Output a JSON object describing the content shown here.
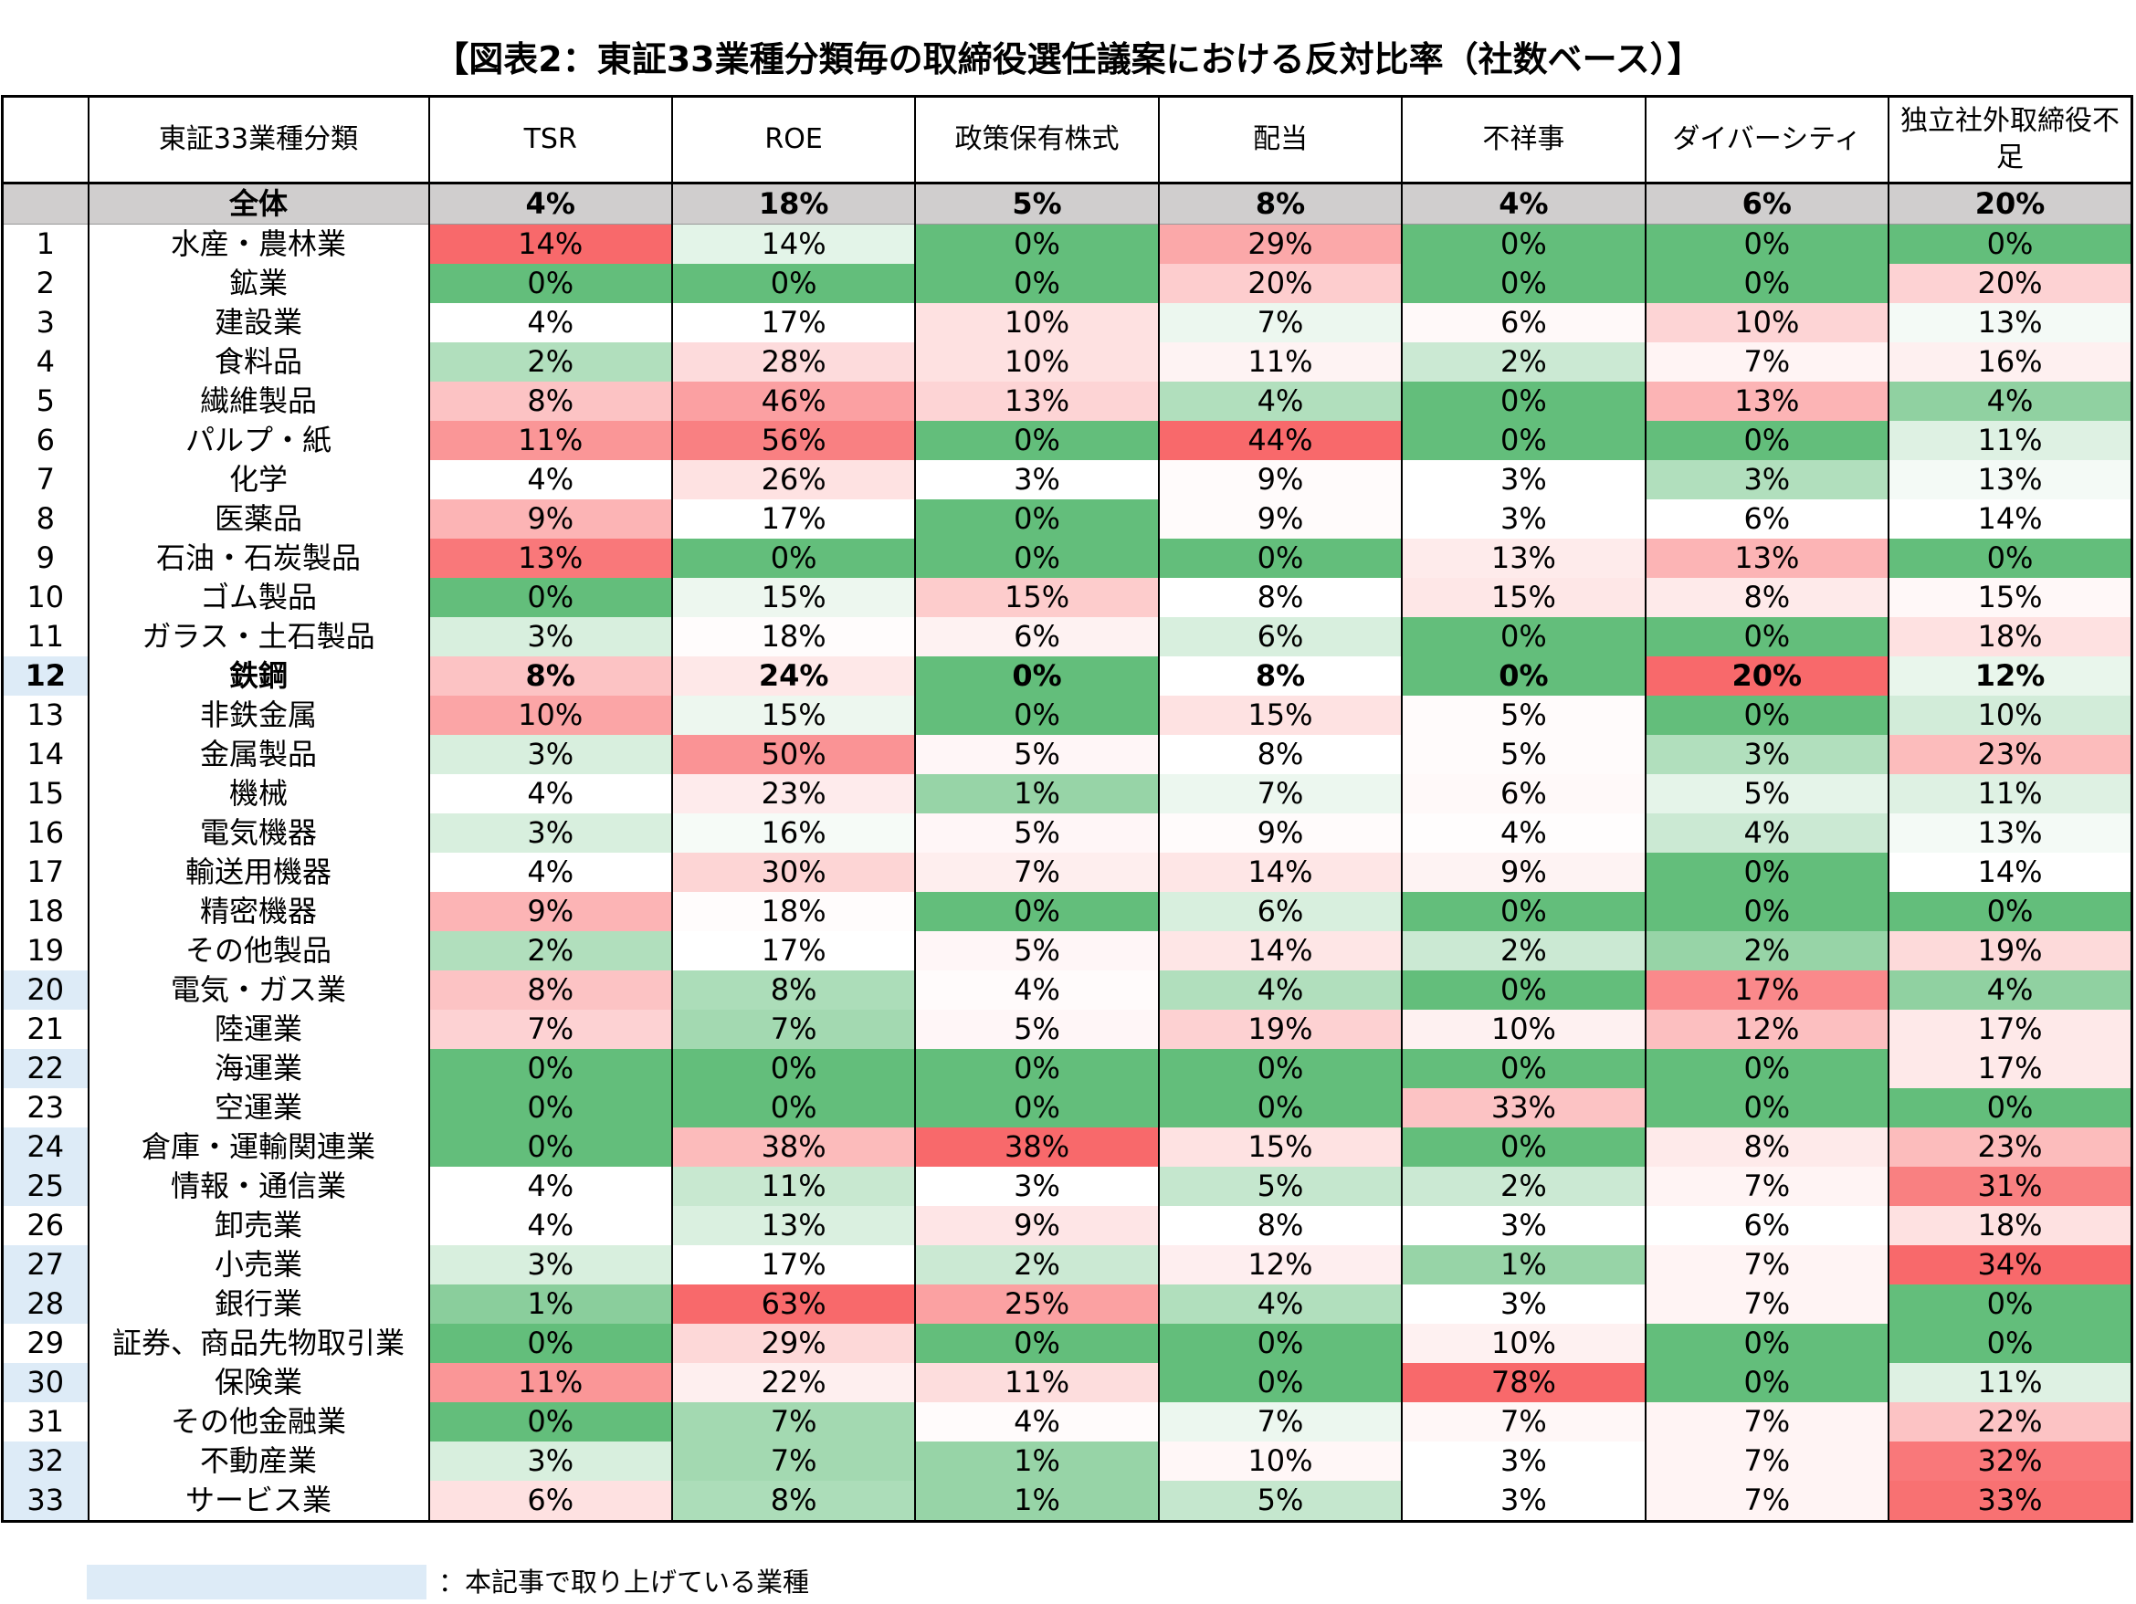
{
  "header": {
    "title": "【図表2：東証33業種分類毎の取締役選任議案における反対比率（社数ベース）】"
  },
  "table": {
    "columns": [
      "東証33業種分類",
      "TSR",
      "ROE",
      "政策保有株式",
      "配当",
      "不祥事",
      "ダイバーシティ",
      "独立社外取締役不足"
    ],
    "color_scale": {
      "low": "#63be7b",
      "mid": "#ffffff",
      "high": "#f8696b"
    },
    "total_fill": "#d0cece",
    "total": {
      "label": "全体",
      "cells": [
        "4%",
        "18%",
        "5%",
        "8%",
        "4%",
        "6%",
        "20%"
      ]
    },
    "rows": [
      {
        "no": "1",
        "name": "水産・農林業",
        "cells": [
          "14%",
          "14%",
          "0%",
          "29%",
          "0%",
          "0%",
          "0%"
        ]
      },
      {
        "no": "2",
        "name": "鉱業",
        "cells": [
          "0%",
          "0%",
          "0%",
          "20%",
          "0%",
          "0%",
          "20%"
        ]
      },
      {
        "no": "3",
        "name": "建設業",
        "cells": [
          "4%",
          "17%",
          "10%",
          "7%",
          "6%",
          "10%",
          "13%"
        ]
      },
      {
        "no": "4",
        "name": "食料品",
        "cells": [
          "2%",
          "28%",
          "10%",
          "11%",
          "2%",
          "7%",
          "16%"
        ]
      },
      {
        "no": "5",
        "name": "繊維製品",
        "cells": [
          "8%",
          "46%",
          "13%",
          "4%",
          "0%",
          "13%",
          "4%"
        ]
      },
      {
        "no": "6",
        "name": "パルプ・紙",
        "cells": [
          "11%",
          "56%",
          "0%",
          "44%",
          "0%",
          "0%",
          "11%"
        ]
      },
      {
        "no": "7",
        "name": "化学",
        "cells": [
          "4%",
          "26%",
          "3%",
          "9%",
          "3%",
          "3%",
          "13%"
        ]
      },
      {
        "no": "8",
        "name": "医薬品",
        "cells": [
          "9%",
          "17%",
          "0%",
          "9%",
          "3%",
          "6%",
          "14%"
        ]
      },
      {
        "no": "9",
        "name": "石油・石炭製品",
        "cells": [
          "13%",
          "0%",
          "0%",
          "0%",
          "13%",
          "13%",
          "0%"
        ]
      },
      {
        "no": "10",
        "name": "ゴム製品",
        "cells": [
          "0%",
          "15%",
          "15%",
          "8%",
          "15%",
          "8%",
          "15%"
        ]
      },
      {
        "no": "11",
        "name": "ガラス・土石製品",
        "cells": [
          "3%",
          "18%",
          "6%",
          "6%",
          "0%",
          "0%",
          "18%"
        ]
      },
      {
        "no": "12",
        "name": "鉄鋼",
        "cells": [
          "8%",
          "24%",
          "0%",
          "8%",
          "0%",
          "20%",
          "12%"
        ],
        "highlight": true,
        "bold": true
      },
      {
        "no": "13",
        "name": "非鉄金属",
        "cells": [
          "10%",
          "15%",
          "0%",
          "15%",
          "5%",
          "0%",
          "10%"
        ]
      },
      {
        "no": "14",
        "name": "金属製品",
        "cells": [
          "3%",
          "50%",
          "5%",
          "8%",
          "5%",
          "3%",
          "23%"
        ]
      },
      {
        "no": "15",
        "name": "機械",
        "cells": [
          "4%",
          "23%",
          "1%",
          "7%",
          "6%",
          "5%",
          "11%"
        ]
      },
      {
        "no": "16",
        "name": "電気機器",
        "cells": [
          "3%",
          "16%",
          "5%",
          "9%",
          "4%",
          "4%",
          "13%"
        ]
      },
      {
        "no": "17",
        "name": "輸送用機器",
        "cells": [
          "4%",
          "30%",
          "7%",
          "14%",
          "9%",
          "0%",
          "14%"
        ]
      },
      {
        "no": "18",
        "name": "精密機器",
        "cells": [
          "9%",
          "18%",
          "0%",
          "6%",
          "0%",
          "0%",
          "0%"
        ]
      },
      {
        "no": "19",
        "name": "その他製品",
        "cells": [
          "2%",
          "17%",
          "5%",
          "14%",
          "2%",
          "2%",
          "19%"
        ]
      },
      {
        "no": "20",
        "name": "電気・ガス業",
        "cells": [
          "8%",
          "8%",
          "4%",
          "4%",
          "0%",
          "17%",
          "4%"
        ],
        "highlight": true
      },
      {
        "no": "21",
        "name": "陸運業",
        "cells": [
          "7%",
          "7%",
          "5%",
          "19%",
          "10%",
          "12%",
          "17%"
        ]
      },
      {
        "no": "22",
        "name": "海運業",
        "cells": [
          "0%",
          "0%",
          "0%",
          "0%",
          "0%",
          "0%",
          "17%"
        ],
        "highlight": true
      },
      {
        "no": "23",
        "name": "空運業",
        "cells": [
          "0%",
          "0%",
          "0%",
          "0%",
          "33%",
          "0%",
          "0%"
        ]
      },
      {
        "no": "24",
        "name": "倉庫・運輸関連業",
        "cells": [
          "0%",
          "38%",
          "38%",
          "15%",
          "0%",
          "8%",
          "23%"
        ],
        "highlight": true
      },
      {
        "no": "25",
        "name": "情報・通信業",
        "cells": [
          "4%",
          "11%",
          "3%",
          "5%",
          "2%",
          "7%",
          "31%"
        ],
        "highlight": true
      },
      {
        "no": "26",
        "name": "卸売業",
        "cells": [
          "4%",
          "13%",
          "9%",
          "8%",
          "3%",
          "6%",
          "18%"
        ]
      },
      {
        "no": "27",
        "name": "小売業",
        "cells": [
          "3%",
          "17%",
          "2%",
          "12%",
          "1%",
          "7%",
          "34%"
        ],
        "highlight": true
      },
      {
        "no": "28",
        "name": "銀行業",
        "cells": [
          "1%",
          "63%",
          "25%",
          "4%",
          "3%",
          "7%",
          "0%"
        ],
        "highlight": true
      },
      {
        "no": "29",
        "name": "証券、商品先物取引業",
        "cells": [
          "0%",
          "29%",
          "0%",
          "0%",
          "10%",
          "0%",
          "0%"
        ]
      },
      {
        "no": "30",
        "name": "保険業",
        "cells": [
          "11%",
          "22%",
          "11%",
          "0%",
          "78%",
          "0%",
          "11%"
        ],
        "highlight": true
      },
      {
        "no": "31",
        "name": "その他金融業",
        "cells": [
          "0%",
          "7%",
          "4%",
          "7%",
          "7%",
          "7%",
          "22%"
        ]
      },
      {
        "no": "32",
        "name": "不動産業",
        "cells": [
          "3%",
          "7%",
          "1%",
          "10%",
          "3%",
          "7%",
          "32%"
        ],
        "highlight": true
      },
      {
        "no": "33",
        "name": "サービス業",
        "cells": [
          "6%",
          "8%",
          "1%",
          "5%",
          "3%",
          "7%",
          "33%"
        ],
        "highlight": true
      }
    ]
  },
  "legend": {
    "color": "#ddebf7",
    "label": "：本記事で取り上げている業種"
  }
}
